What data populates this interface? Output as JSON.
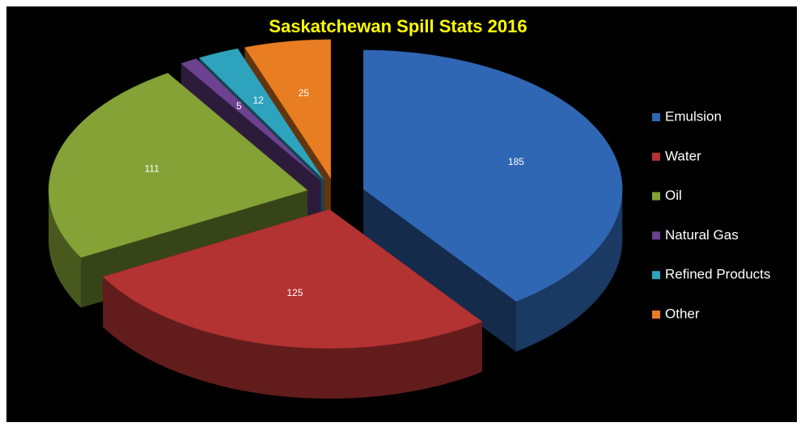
{
  "chart_data": {
    "type": "pie3d",
    "title": "Saskatchewan Spill Stats 2016",
    "categories": [
      "Emulsion",
      "Water",
      "Oil",
      "Natural Gas",
      "Refined Products",
      "Other"
    ],
    "values": [
      185,
      125,
      111,
      5,
      12,
      25
    ],
    "colors": [
      "#3067b4",
      "#b33232",
      "#84a236",
      "#6b4190",
      "#2ea3bd",
      "#e97d22"
    ],
    "legend": "right"
  }
}
